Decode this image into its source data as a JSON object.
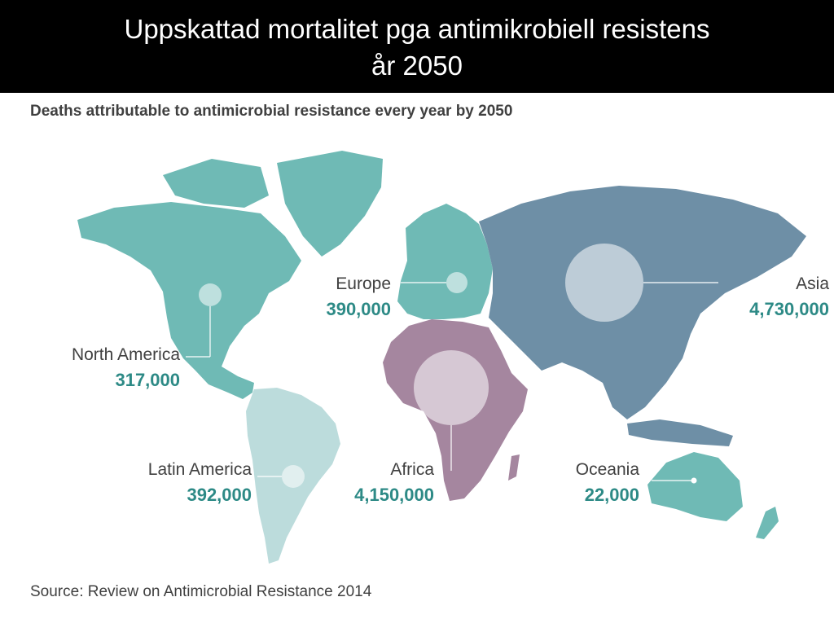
{
  "slide": {
    "title_line1": "Uppskattad mortalitet pga antimikrobiell resistens",
    "title_line2": "år 2050"
  },
  "map": {
    "title": "Deaths attributable to antimicrobial resistance every year by 2050",
    "source": "Source: Review on Antimicrobial Resistance 2014",
    "colors": {
      "americas_north": "#6fbab5",
      "latin_america": "#bcdcdc",
      "europe": "#6fbab5",
      "africa": "#a5869f",
      "asia": "#6e8fa6",
      "oceania": "#6fbab5",
      "value_text": "#2d8a86"
    },
    "regions": [
      {
        "name": "North America",
        "value": "317,000"
      },
      {
        "name": "Europe",
        "value": "390,000"
      },
      {
        "name": "Asia",
        "value": "4,730,000"
      },
      {
        "name": "Latin America",
        "value": "392,000"
      },
      {
        "name": "Africa",
        "value": "4,150,000"
      },
      {
        "name": "Oceania",
        "value": "22,000"
      }
    ]
  }
}
